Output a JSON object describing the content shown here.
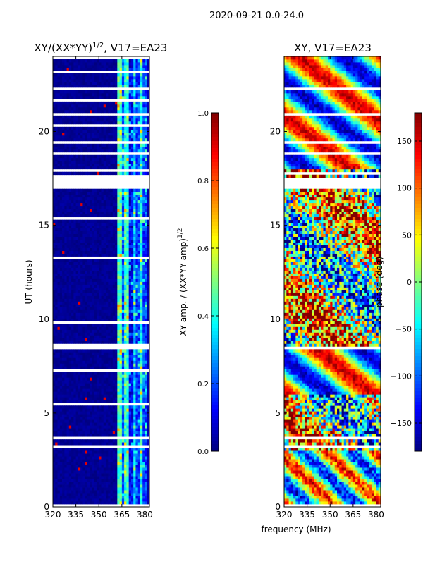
{
  "figure_title": "2020-09-21 0.0-24.0",
  "colors": {
    "background": "#ffffff",
    "jet_low": "#00007f",
    "jet_mid": "#7fff7f",
    "jet_high": "#7f0000"
  },
  "chart_data": [
    {
      "type": "heatmap",
      "title_main": "XY/(XX*YY)",
      "title_sup": "1/2",
      "title_suffix": ", V17=EA23",
      "xlabel": "",
      "ylabel": "UT (hours)",
      "xlim": [
        320,
        383
      ],
      "ylim": [
        0,
        24
      ],
      "xticks": [
        320,
        335,
        350,
        365,
        380
      ],
      "yticks": [
        0,
        5,
        10,
        15,
        20
      ],
      "colorbar": {
        "label_main": "XY amp. / (XX*YY amp)",
        "label_sup": "1/2",
        "range": [
          0.0,
          1.0
        ],
        "ticks": [
          "0.0",
          "0.2",
          "0.4",
          "0.6",
          "0.8",
          "1.0"
        ],
        "tick_values": [
          0.0,
          0.2,
          0.4,
          0.6,
          0.8,
          1.0
        ]
      },
      "gap_intervals_hours": [
        [
          23.82,
          24.0
        ],
        [
          23.1,
          23.22
        ],
        [
          22.15,
          22.4
        ],
        [
          21.6,
          21.68
        ],
        [
          20.9,
          21.02
        ],
        [
          20.3,
          20.38
        ],
        [
          19.3,
          19.55
        ],
        [
          18.75,
          18.95
        ],
        [
          17.8,
          17.95
        ],
        [
          16.9,
          17.7
        ],
        [
          15.3,
          15.38
        ],
        [
          13.2,
          13.28
        ],
        [
          9.8,
          9.92
        ],
        [
          8.45,
          8.7
        ],
        [
          7.2,
          7.28
        ],
        [
          5.45,
          5.55
        ],
        [
          4.0,
          4.1
        ],
        [
          3.55,
          3.7
        ],
        [
          3.2,
          3.28
        ],
        [
          1.75,
          1.85
        ],
        [
          0.03,
          0.09
        ]
      ],
      "value_profile": [
        {
          "from": 320,
          "to": 362.5,
          "value": 0.02
        },
        {
          "from": 362.5,
          "to": 365,
          "value": 0.45
        },
        {
          "from": 365,
          "to": 367,
          "value": 0.22
        },
        {
          "from": 367,
          "to": 370,
          "value": 0.42
        },
        {
          "from": 370,
          "to": 372,
          "value": 0.12
        },
        {
          "from": 372,
          "to": 374,
          "value": 0.32
        },
        {
          "from": 374,
          "to": 376.5,
          "value": 0.18
        },
        {
          "from": 376.5,
          "to": 379,
          "value": 0.4
        },
        {
          "from": 379,
          "to": 381,
          "value": 0.2
        },
        {
          "from": 381,
          "to": 383,
          "value": 0.05
        }
      ]
    },
    {
      "type": "heatmap",
      "title": "XY, V17=EA23",
      "xlabel": "frequency (MHz)",
      "ylabel": "",
      "xlim": [
        320,
        383
      ],
      "ylim": [
        0,
        24
      ],
      "xticks": [
        320,
        335,
        350,
        365,
        380
      ],
      "yticks": [
        0,
        5,
        10,
        15,
        20
      ],
      "colorbar": {
        "label": "phase (deg)",
        "range": [
          -180,
          180
        ],
        "ticks": [
          "150",
          "100",
          "50",
          "0",
          "−50",
          "−100",
          "−150"
        ],
        "tick_values": [
          150,
          100,
          50,
          0,
          -50,
          -100,
          -150
        ]
      },
      "gap_intervals_hours": [
        [
          23.05,
          23.15
        ],
        [
          22.15,
          22.3
        ],
        [
          21.55,
          21.65
        ],
        [
          20.9,
          21.0
        ],
        [
          19.3,
          19.45
        ],
        [
          18.75,
          18.85
        ],
        [
          17.75,
          17.85
        ],
        [
          17.0,
          17.5
        ],
        [
          8.45,
          8.6
        ],
        [
          3.6,
          3.7
        ],
        [
          3.2,
          3.3
        ],
        [
          0.05,
          0.1
        ]
      ]
    }
  ]
}
